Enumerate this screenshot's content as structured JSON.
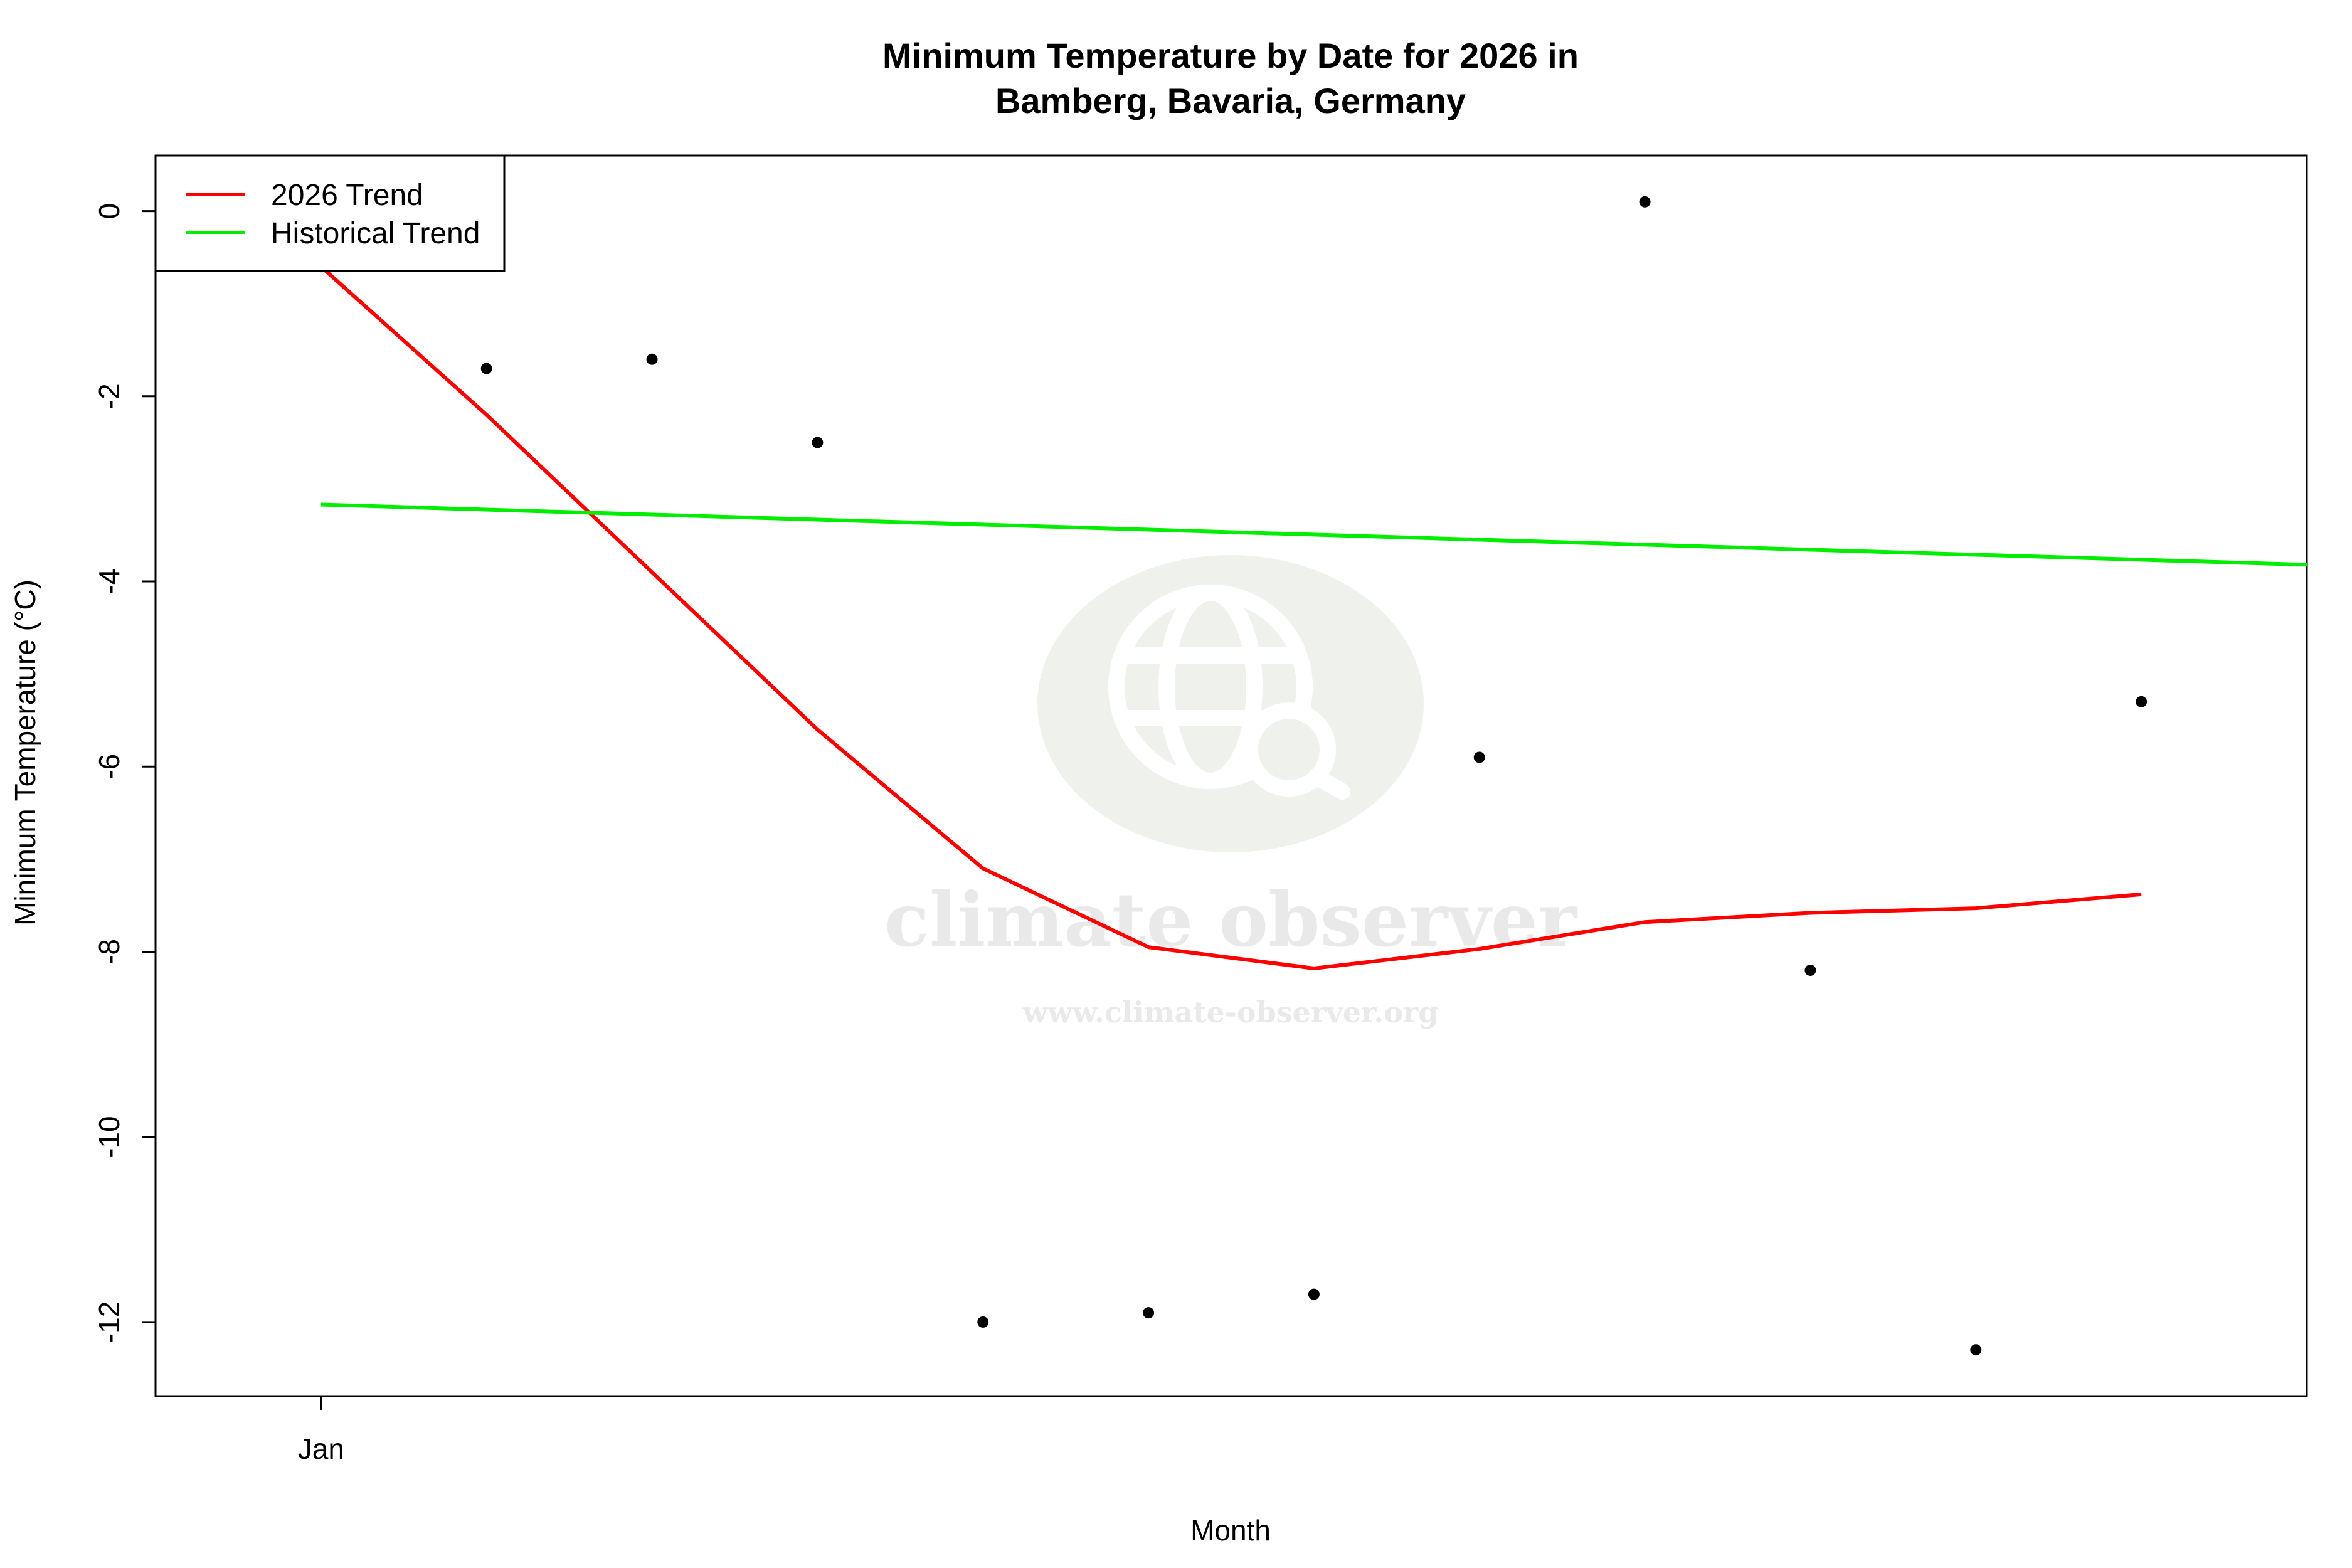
{
  "chart_data": {
    "type": "scatter",
    "title_lines": [
      "Minimum Temperature by Date for 2026 in",
      "Bamberg, Bavaria, Germany"
    ],
    "xlabel": "Month",
    "ylabel": "Minimum Temperature (°C)",
    "x_ticks": [
      {
        "value": "2026-01-01",
        "label": "Jan"
      }
    ],
    "y_ticks": [
      0,
      -2,
      -4,
      -6,
      -8,
      -10,
      -12
    ],
    "xlim": [
      "2025-12-31",
      "2026-01-13"
    ],
    "ylim": [
      -12.8,
      0.6
    ],
    "points": [
      {
        "x": "2026-01-01",
        "y": -0.6
      },
      {
        "x": "2026-01-02",
        "y": -1.7
      },
      {
        "x": "2026-01-03",
        "y": -1.6
      },
      {
        "x": "2026-01-04",
        "y": -2.5
      },
      {
        "x": "2026-01-05",
        "y": -12.0
      },
      {
        "x": "2026-01-06",
        "y": -11.9
      },
      {
        "x": "2026-01-07",
        "y": -11.7
      },
      {
        "x": "2026-01-08",
        "y": -5.9
      },
      {
        "x": "2026-01-09",
        "y": 0.1
      },
      {
        "x": "2026-01-10",
        "y": -8.2
      },
      {
        "x": "2026-01-11",
        "y": -12.3
      },
      {
        "x": "2026-01-12",
        "y": -5.3
      }
    ],
    "series": [
      {
        "name": "2026 Trend",
        "color": "#ff0000",
        "points": [
          {
            "x": "2026-01-01",
            "y": -0.6
          },
          {
            "x": "2026-01-02",
            "y": -2.2
          },
          {
            "x": "2026-01-03",
            "y": -3.9
          },
          {
            "x": "2026-01-04",
            "y": -5.6
          },
          {
            "x": "2026-01-05",
            "y": -7.1
          },
          {
            "x": "2026-01-06",
            "y": -7.95
          },
          {
            "x": "2026-01-07",
            "y": -8.18
          },
          {
            "x": "2026-01-08",
            "y": -7.97
          },
          {
            "x": "2026-01-09",
            "y": -7.68
          },
          {
            "x": "2026-01-10",
            "y": -7.58
          },
          {
            "x": "2026-01-11",
            "y": -7.53
          },
          {
            "x": "2026-01-12",
            "y": -7.38
          }
        ]
      },
      {
        "name": "Historical Trend",
        "color": "#00ee00",
        "points": [
          {
            "x": "2026-01-01",
            "y": -3.17
          },
          {
            "x": "2026-01-13",
            "y": -3.82
          }
        ]
      }
    ],
    "legend_position": "top-left",
    "grid": false
  },
  "watermark": {
    "brand": "climate observer",
    "url": "www.climate-observer.org",
    "icon": "globe-search-icon"
  }
}
